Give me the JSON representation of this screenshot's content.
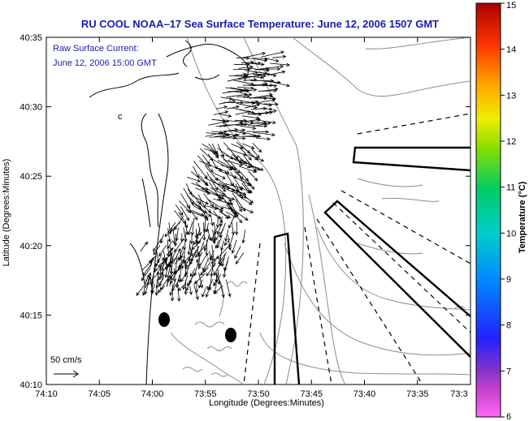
{
  "title": "RU COOL  NOAA–17  Sea Surface Temperature:  June 12, 2006 1507 GMT",
  "note": {
    "line1": "Raw Surface Current:",
    "line2": "June 12, 2006 15:00 GMT"
  },
  "scale": {
    "label": "50 cm/s"
  },
  "map": {
    "x_label": "Longitude (Degrees:Minutes)",
    "y_label": "Latitude (Degrees:Minutes)",
    "x_ticks": [
      "74:10",
      "74:05",
      "74:00",
      "73:55",
      "73:50",
      "73:45",
      "73:40",
      "73:35",
      "73:3"
    ],
    "y_ticks": [
      "40:35",
      "40:30",
      "40:25",
      "40:20",
      "40:15",
      "40:10"
    ]
  },
  "colorbar": {
    "label": "Temperature (°C)",
    "ticks": [
      "15",
      "14",
      "13",
      "12",
      "11",
      "10",
      "9",
      "8",
      "7",
      "6"
    ]
  },
  "colors": {
    "title": "#1b1bb0",
    "coast": "#000000",
    "bathymetry": "#888888"
  }
}
